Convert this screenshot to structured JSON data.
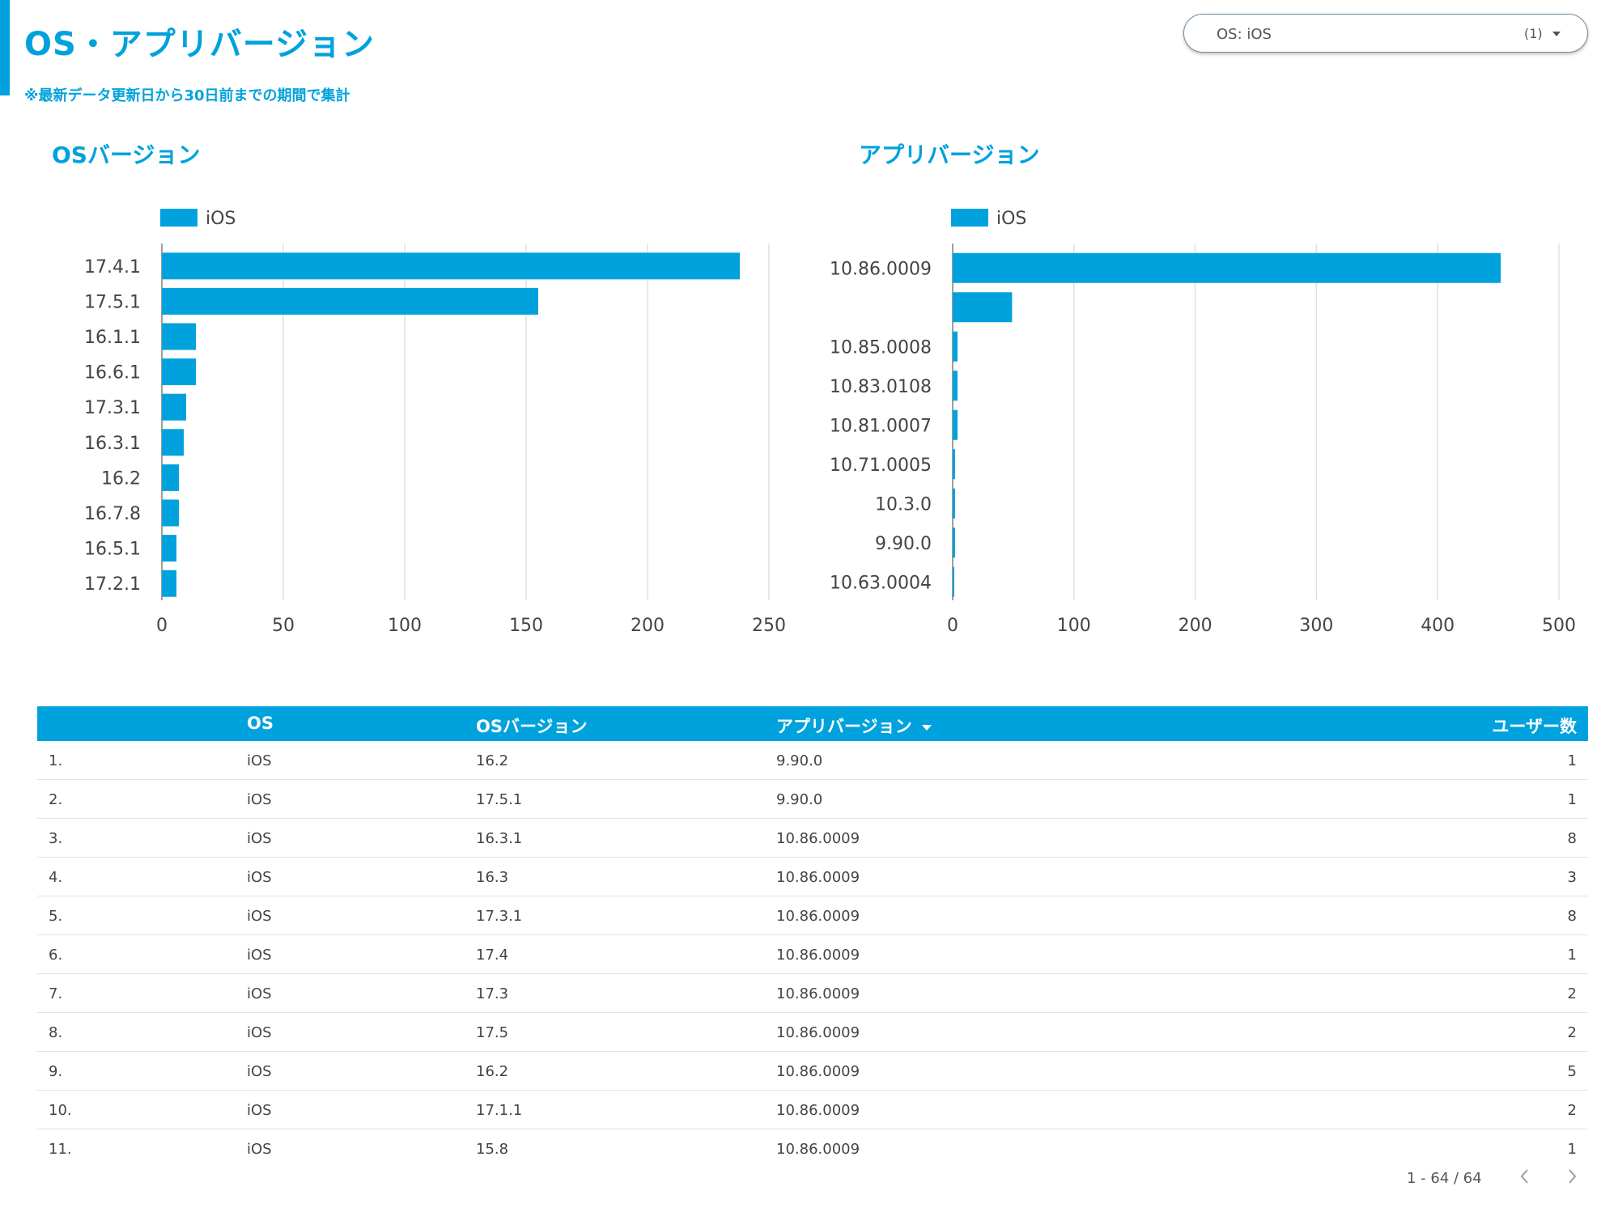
{
  "header": {
    "title": "OS・アプリバージョン",
    "subtitle": "※最新データ更新日から30日前までの期間で集計"
  },
  "filter": {
    "label": "OS: iOS",
    "count": "(1)"
  },
  "colors": {
    "accent": "#00a2dd",
    "grid": "#e0e0e0",
    "axis": "#9e9e9e"
  },
  "charts": {
    "os_version": {
      "title": "OSバージョン"
    },
    "app_version": {
      "title": "アプリバージョン"
    }
  },
  "chart_data": [
    {
      "type": "bar",
      "orientation": "horizontal",
      "title": "OSバージョン",
      "legend": [
        "iOS"
      ],
      "legend_position": "top-left",
      "categories": [
        "17.4.1",
        "17.5.1",
        "16.1.1",
        "16.6.1",
        "17.3.1",
        "16.3.1",
        "16.2",
        "16.7.8",
        "16.5.1",
        "17.2.1"
      ],
      "series": [
        {
          "name": "iOS",
          "values": [
            238,
            155,
            14,
            14,
            10,
            9,
            7,
            7,
            6,
            6
          ]
        }
      ],
      "xlim": [
        0,
        250
      ],
      "ticks": [
        0,
        50,
        100,
        150,
        200,
        250
      ],
      "grid": true
    },
    {
      "type": "bar",
      "orientation": "horizontal",
      "title": "アプリバージョン",
      "legend": [
        "iOS"
      ],
      "legend_position": "top-left",
      "categories": [
        "10.86.0009",
        "",
        "10.85.0008",
        "10.83.0108",
        "10.81.0007",
        "10.71.0005",
        "10.3.0",
        "9.90.0",
        "10.63.0004"
      ],
      "series": [
        {
          "name": "iOS",
          "values": [
            452,
            49,
            4,
            4,
            4,
            2,
            2,
            2,
            1
          ]
        }
      ],
      "xlim": [
        0,
        500
      ],
      "ticks": [
        0,
        100,
        200,
        300,
        400,
        500
      ],
      "grid": true
    }
  ],
  "table": {
    "headers": [
      "",
      "OS",
      "OSバージョン",
      "アプリバージョン",
      "ユーザー数"
    ],
    "rows": [
      [
        "1.",
        "iOS",
        "16.2",
        "9.90.0",
        "1"
      ],
      [
        "2.",
        "iOS",
        "17.5.1",
        "9.90.0",
        "1"
      ],
      [
        "3.",
        "iOS",
        "16.3.1",
        "10.86.0009",
        "8"
      ],
      [
        "4.",
        "iOS",
        "16.3",
        "10.86.0009",
        "3"
      ],
      [
        "5.",
        "iOS",
        "17.3.1",
        "10.86.0009",
        "8"
      ],
      [
        "6.",
        "iOS",
        "17.4",
        "10.86.0009",
        "1"
      ],
      [
        "7.",
        "iOS",
        "17.3",
        "10.86.0009",
        "2"
      ],
      [
        "8.",
        "iOS",
        "17.5",
        "10.86.0009",
        "2"
      ],
      [
        "9.",
        "iOS",
        "16.2",
        "10.86.0009",
        "5"
      ],
      [
        "10.",
        "iOS",
        "17.1.1",
        "10.86.0009",
        "2"
      ],
      [
        "11.",
        "iOS",
        "15.8",
        "10.86.0009",
        "1"
      ]
    ]
  },
  "pagination": {
    "label": "1 - 64 / 64",
    "prev_icon": "chevron-left-icon",
    "next_icon": "chevron-right-icon"
  }
}
